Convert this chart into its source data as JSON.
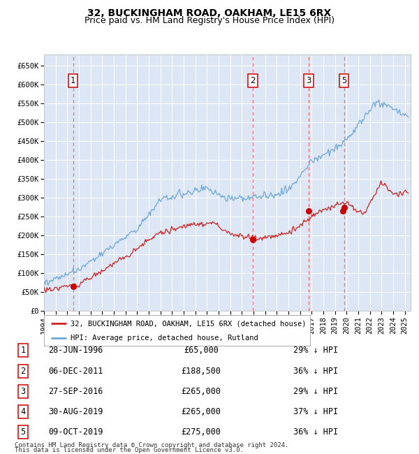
{
  "title": "32, BUCKINGHAM ROAD, OAKHAM, LE15 6RX",
  "subtitle": "Price paid vs. HM Land Registry's House Price Index (HPI)",
  "ylabel_ticks": [
    "£0",
    "£50K",
    "£100K",
    "£150K",
    "£200K",
    "£250K",
    "£300K",
    "£350K",
    "£400K",
    "£450K",
    "£500K",
    "£550K",
    "£600K",
    "£650K"
  ],
  "ytick_values": [
    0,
    50000,
    100000,
    150000,
    200000,
    250000,
    300000,
    350000,
    400000,
    450000,
    500000,
    550000,
    600000,
    650000
  ],
  "ylim": [
    0,
    680000
  ],
  "xlim_start": 1994.0,
  "xlim_end": 2025.5,
  "bg_color": "#dce6f5",
  "grid_color": "#ffffff",
  "hpi_color": "#6fa8d8",
  "price_color": "#cc2222",
  "sale_marker_color": "#cc0000",
  "vline_color": "#ff5555",
  "annotation_box_color": "#cc0000",
  "sales": [
    {
      "num": 1,
      "date_val": 1996.49,
      "price": 65000,
      "label": "28-JUN-1996",
      "price_str": "£65,000",
      "pct": "29%"
    },
    {
      "num": 2,
      "date_val": 2011.93,
      "price": 188500,
      "label": "06-DEC-2011",
      "price_str": "£188,500",
      "pct": "36%"
    },
    {
      "num": 3,
      "date_val": 2016.74,
      "price": 265000,
      "label": "27-SEP-2016",
      "price_str": "£265,000",
      "pct": "29%"
    },
    {
      "num": 4,
      "date_val": 2019.66,
      "price": 265000,
      "label": "30-AUG-2019",
      "price_str": "£265,000",
      "pct": "37%"
    },
    {
      "num": 5,
      "date_val": 2019.77,
      "price": 275000,
      "label": "09-OCT-2019",
      "price_str": "£275,000",
      "pct": "36%"
    }
  ],
  "visible_sale_nums": [
    1,
    2,
    3,
    5
  ],
  "legend_price_label": "32, BUCKINGHAM ROAD, OAKHAM, LE15 6RX (detached house)",
  "legend_hpi_label": "HPI: Average price, detached house, Rutland",
  "footer_line1": "Contains HM Land Registry data © Crown copyright and database right 2024.",
  "footer_line2": "This data is licensed under the Open Government Licence v3.0.",
  "title_fontsize": 10,
  "subtitle_fontsize": 9,
  "tick_fontsize": 7.5,
  "legend_fontsize": 7.5,
  "table_fontsize": 8.5,
  "footer_fontsize": 6.5,
  "xtick_years": [
    1994,
    1995,
    1996,
    1997,
    1998,
    1999,
    2000,
    2001,
    2002,
    2003,
    2004,
    2005,
    2006,
    2007,
    2008,
    2009,
    2010,
    2011,
    2012,
    2013,
    2014,
    2015,
    2016,
    2017,
    2018,
    2019,
    2020,
    2021,
    2022,
    2023,
    2024,
    2025
  ]
}
